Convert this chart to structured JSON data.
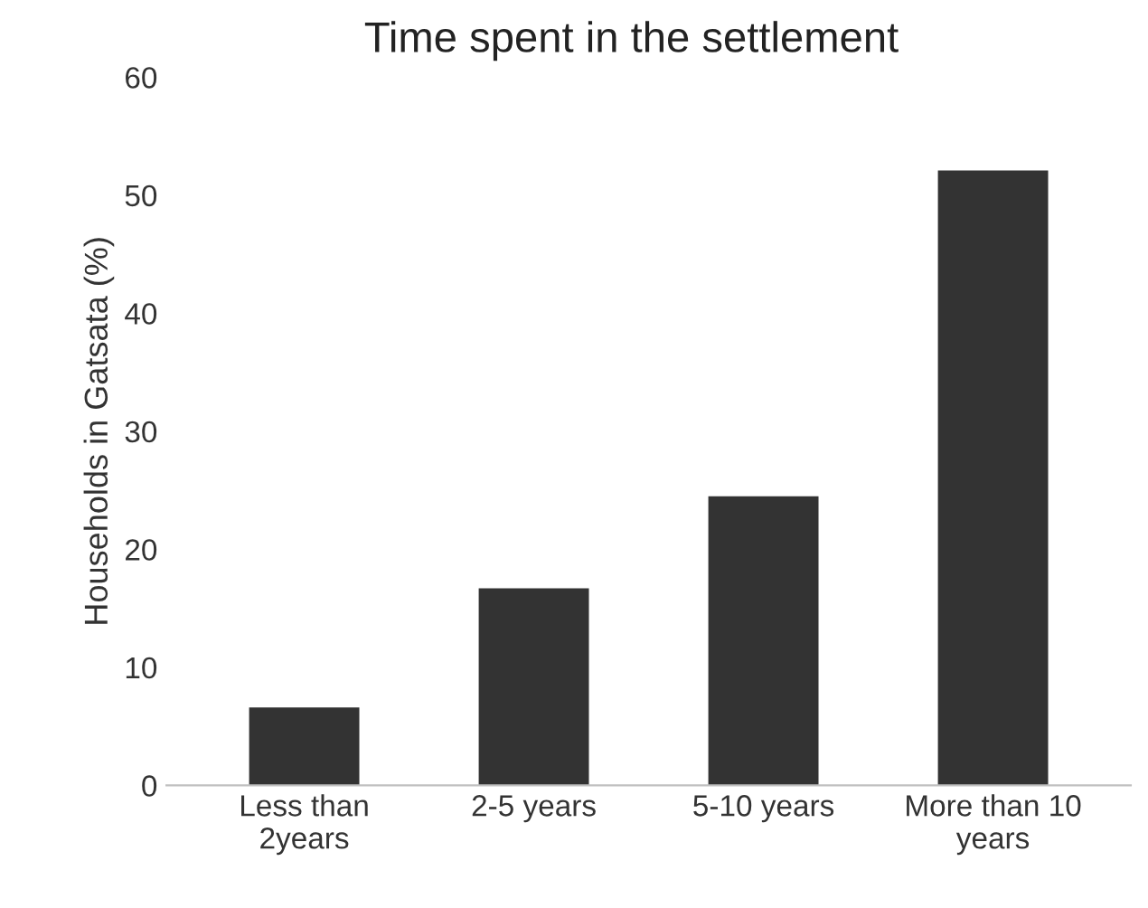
{
  "chart_data": {
    "type": "bar",
    "title": "Time spent in the settlement",
    "ylabel": "Households in Gatsata (%)",
    "categories": [
      "Less than\n2years",
      "2-5 years",
      "5-10 years",
      "More than 10\nyears"
    ],
    "values": [
      6.6,
      16.7,
      24.5,
      52.1
    ],
    "color": "#333333",
    "ylim": [
      0,
      60
    ],
    "yticks": [
      0,
      10,
      20,
      30,
      40,
      50,
      60
    ],
    "grid": false
  }
}
